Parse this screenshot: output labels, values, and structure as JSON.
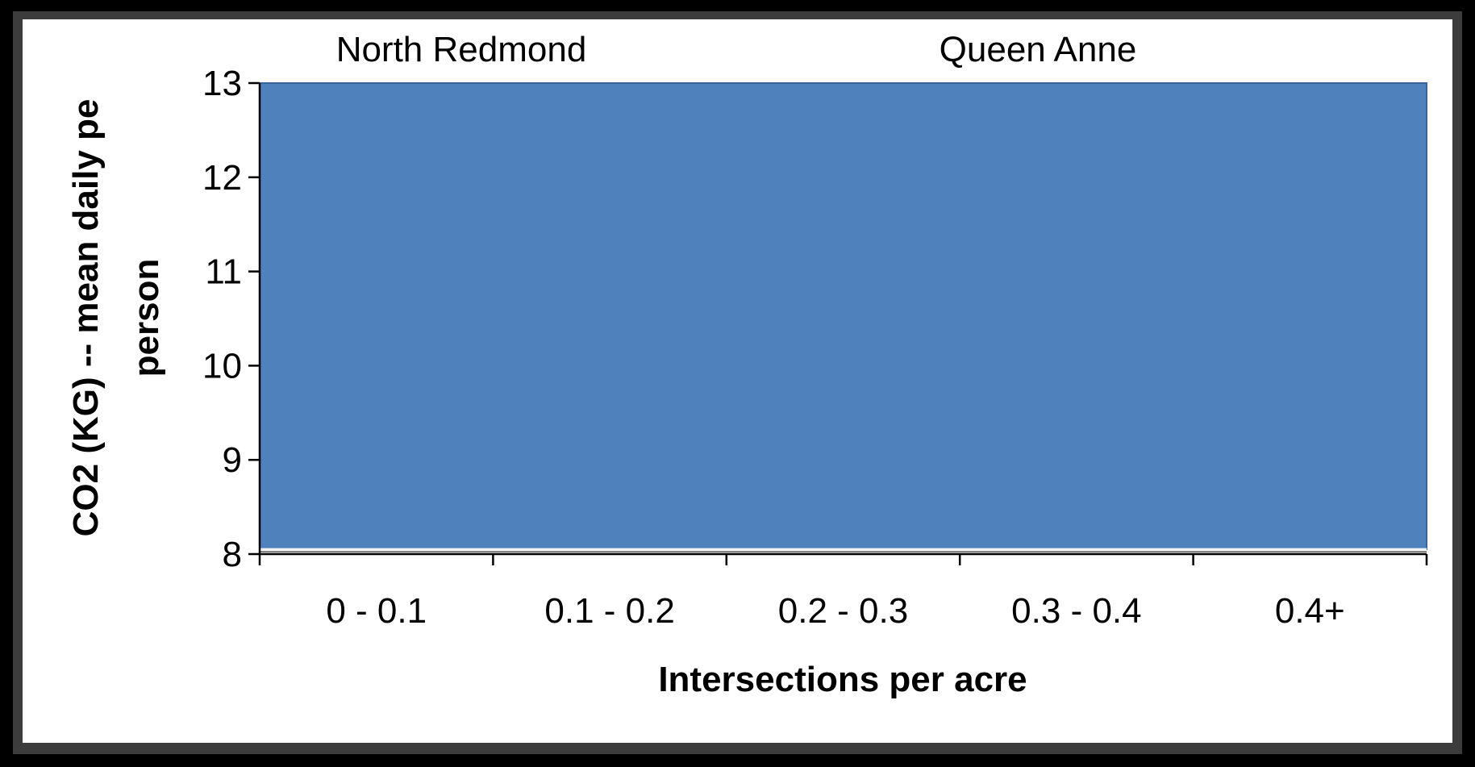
{
  "chart_data": {
    "type": "area",
    "categories": [
      "0 - 0.1",
      "0.1 - 0.2",
      "0.2 - 0.3",
      "0.3 - 0.4",
      "0.4+"
    ],
    "series": [
      {
        "values": [
          13,
          13,
          13,
          13,
          13
        ],
        "color": "#4f81bd"
      }
    ],
    "baseline": 8.05,
    "xlabel": "Intersections per acre",
    "ylabel_lines": [
      "CO2 (KG) -- mean daily pe",
      "person"
    ],
    "yticks": [
      8,
      9,
      10,
      11,
      12,
      13
    ],
    "ylim": [
      8,
      13
    ],
    "grid": false,
    "annotations": [
      {
        "text": "North Redmond",
        "x_category": 0
      },
      {
        "text": "Queen Anne",
        "x_category": 2.75
      }
    ]
  }
}
